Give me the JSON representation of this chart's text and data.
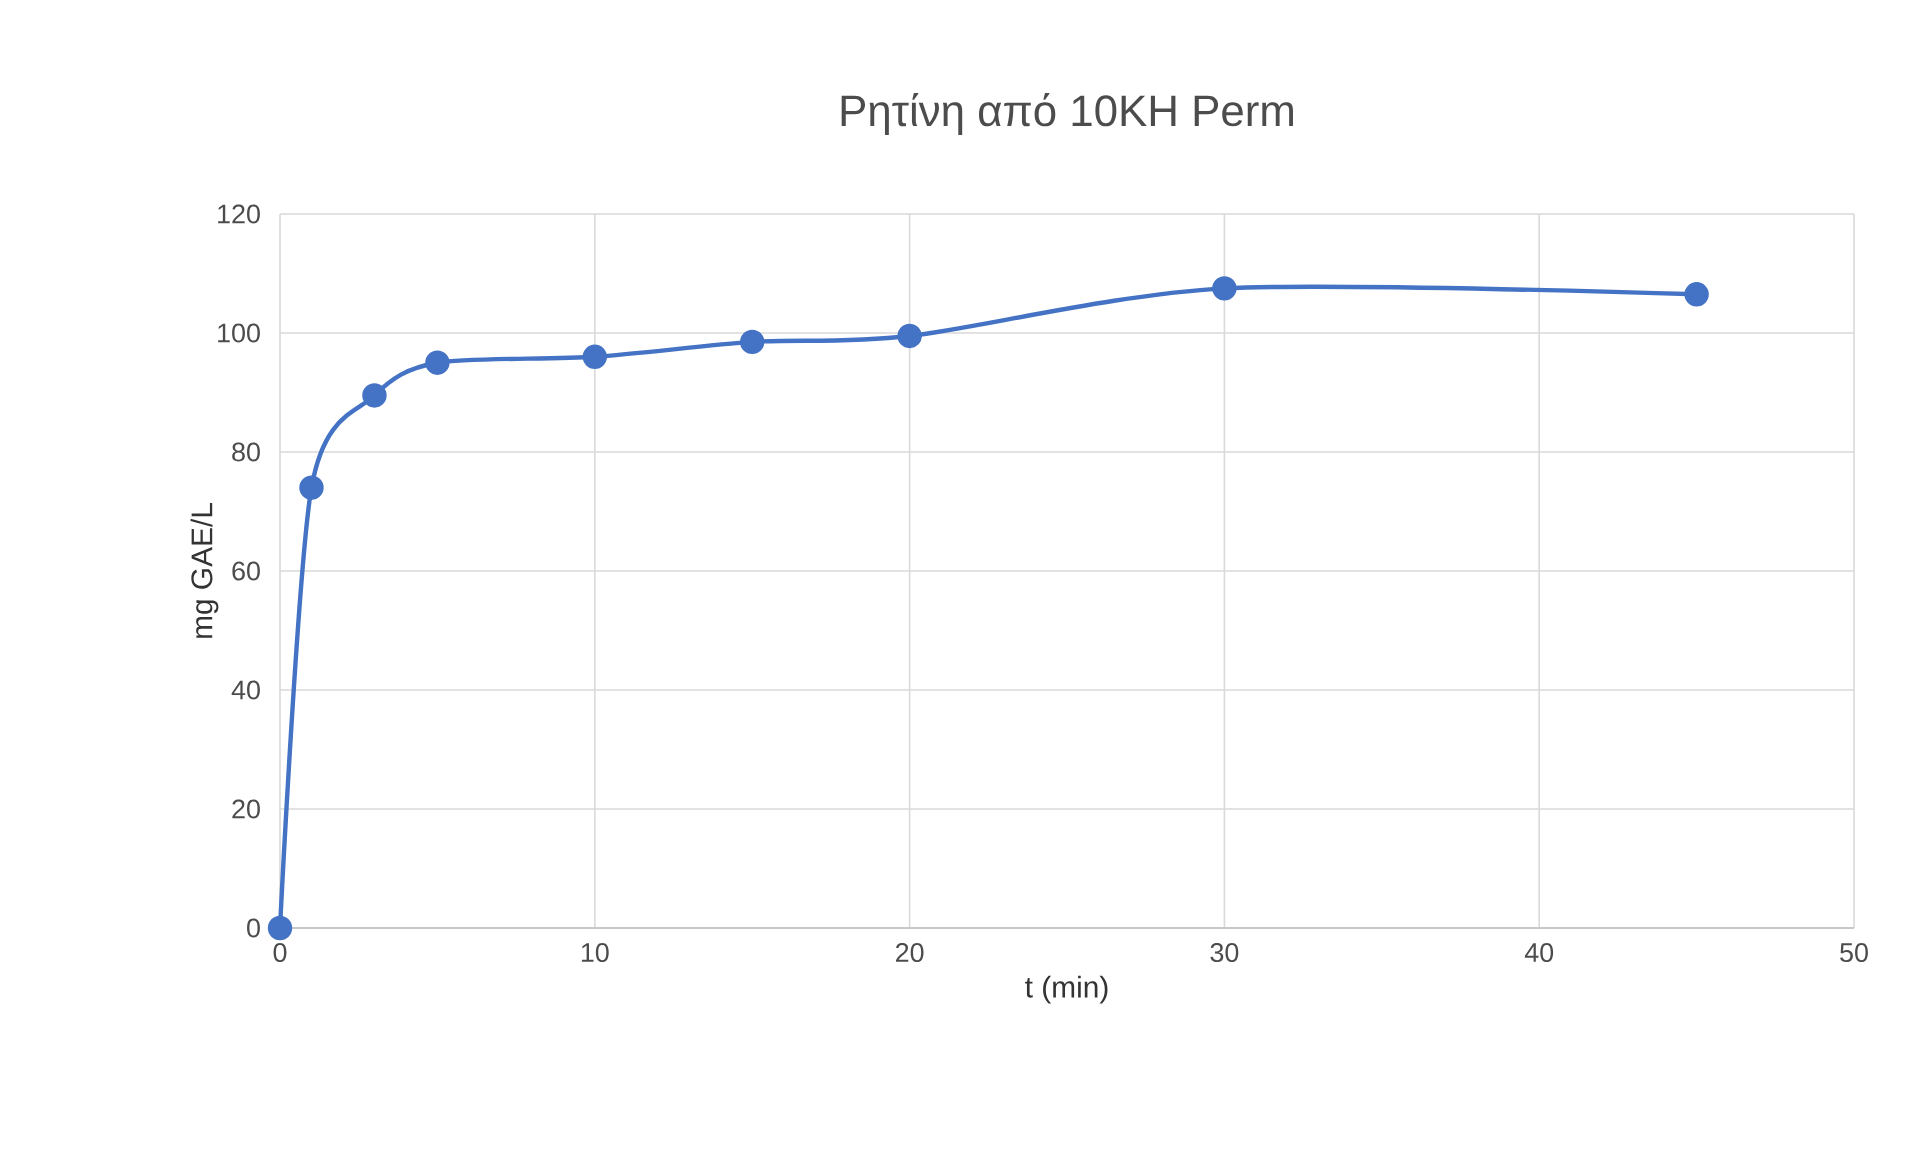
{
  "chart_data": {
    "type": "line",
    "title": "Ρητίνη από 10KH Perm",
    "xlabel": "t (min)",
    "ylabel": "mg GAE/L",
    "x": [
      0,
      1,
      3,
      5,
      10,
      15,
      20,
      30,
      45
    ],
    "series": [
      {
        "color": "#4472c4",
        "values": [
          0,
          74,
          89.5,
          95,
          96,
          98.5,
          99.5,
          107.5,
          106.5
        ]
      }
    ],
    "xlim": [
      0,
      50
    ],
    "xticks": [
      0,
      10,
      20,
      30,
      40,
      50
    ],
    "ylim": [
      0,
      120
    ],
    "yticks": [
      0,
      20,
      40,
      60,
      80,
      100,
      120
    ],
    "grid": true,
    "marker": "circle",
    "line_style": "solid"
  }
}
